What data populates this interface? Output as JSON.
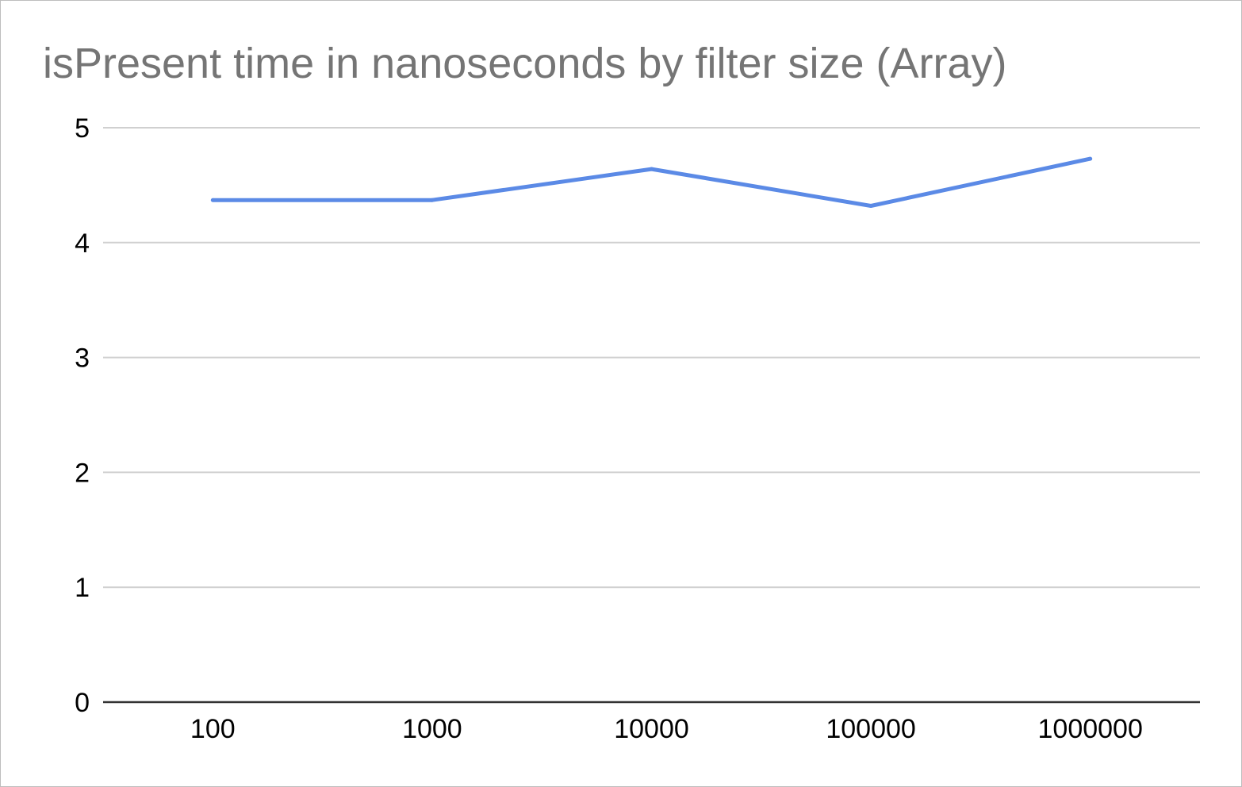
{
  "chart_data": {
    "type": "line",
    "title": "isPresent time in nanoseconds by filter size (Array)",
    "xlabel": "",
    "ylabel": "",
    "categories": [
      "100",
      "1000",
      "10000",
      "100000",
      "1000000"
    ],
    "series": [
      {
        "values": [
          4.37,
          4.37,
          4.64,
          4.32,
          4.73
        ]
      }
    ],
    "ylim": [
      0,
      5
    ],
    "yticks": [
      "0",
      "1",
      "2",
      "3",
      "4",
      "5"
    ],
    "grid": true,
    "legend": "none",
    "colors": {
      "line": "#5b8ae6",
      "grid": "#d0d0d0",
      "axis": "#333333",
      "title": "#757575"
    }
  }
}
